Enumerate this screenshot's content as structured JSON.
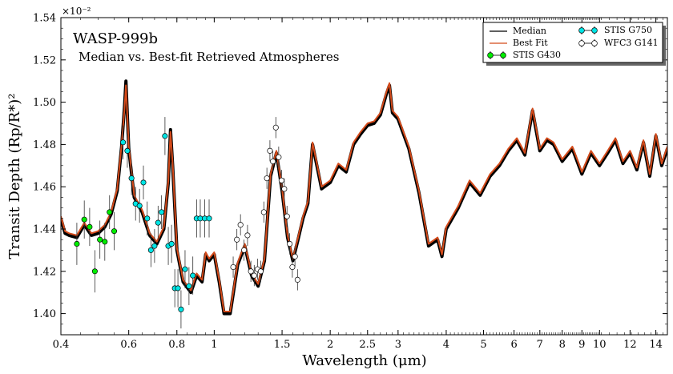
{
  "chart_data": {
    "type": "line",
    "title": "WASP-999b",
    "subtitle": "Median vs. Best-fit Retrieved Atmospheres",
    "xlabel": "Wavelength (μm)",
    "ylabel": "Transit Depth (Rp/R*)²",
    "y_multiplier": "×10⁻²",
    "x_scale": "log",
    "xlim": [
      0.4,
      15
    ],
    "ylim": [
      1.39,
      1.54
    ],
    "x_ticks": [
      0.4,
      0.6,
      0.8,
      1,
      1.5,
      2,
      2.5,
      3,
      4,
      5,
      6,
      7,
      8,
      9,
      10,
      12,
      14
    ],
    "x_tick_labels": [
      "0.4",
      "0.6",
      "0.8",
      "1",
      "1.5",
      "2",
      "2.5",
      "3",
      "4",
      "5",
      "6",
      "7",
      "8",
      "9",
      "10",
      "12",
      "14"
    ],
    "y_ticks": [
      1.4,
      1.42,
      1.44,
      1.46,
      1.48,
      1.5,
      1.52,
      1.54
    ],
    "y_tick_labels": [
      "1.40",
      "1.42",
      "1.44",
      "1.46",
      "1.48",
      "1.50",
      "1.52",
      "1.54"
    ],
    "legend_position": "top-right",
    "colors": {
      "median": "#000000",
      "best_fit": "#d44a1a",
      "stis_g430": "#00ee00",
      "stis_g750": "#00e5e5",
      "wfc3_g141": "#ffffff"
    },
    "lines": [
      {
        "name": "Median",
        "x": [
          0.4,
          0.41,
          0.42,
          0.44,
          0.46,
          0.48,
          0.5,
          0.52,
          0.54,
          0.56,
          0.575,
          0.585,
          0.59,
          0.6,
          0.62,
          0.65,
          0.68,
          0.71,
          0.74,
          0.76,
          0.77,
          0.78,
          0.8,
          0.83,
          0.87,
          0.9,
          0.93,
          0.95,
          0.97,
          1.0,
          1.03,
          1.06,
          1.1,
          1.15,
          1.2,
          1.25,
          1.3,
          1.35,
          1.4,
          1.45,
          1.5,
          1.55,
          1.6,
          1.65,
          1.7,
          1.75,
          1.8,
          1.9,
          2.0,
          2.1,
          2.2,
          2.3,
          2.4,
          2.5,
          2.6,
          2.7,
          2.8,
          2.85,
          2.9,
          3.0,
          3.2,
          3.4,
          3.6,
          3.8,
          3.9,
          4.0,
          4.3,
          4.6,
          4.9,
          5.2,
          5.5,
          5.8,
          6.1,
          6.4,
          6.7,
          7.0,
          7.3,
          7.6,
          8.0,
          8.5,
          9.0,
          9.5,
          10.0,
          10.5,
          11.0,
          11.5,
          12.0,
          12.5,
          13.0,
          13.5,
          14.0,
          14.5,
          15.0
        ],
        "y": [
          1.445,
          1.438,
          1.437,
          1.436,
          1.442,
          1.437,
          1.438,
          1.441,
          1.447,
          1.458,
          1.479,
          1.498,
          1.51,
          1.478,
          1.455,
          1.448,
          1.437,
          1.433,
          1.44,
          1.462,
          1.487,
          1.47,
          1.43,
          1.415,
          1.41,
          1.418,
          1.415,
          1.428,
          1.425,
          1.428,
          1.415,
          1.4,
          1.4,
          1.423,
          1.432,
          1.418,
          1.413,
          1.425,
          1.465,
          1.476,
          1.458,
          1.436,
          1.425,
          1.435,
          1.445,
          1.452,
          1.48,
          1.459,
          1.462,
          1.47,
          1.467,
          1.48,
          1.485,
          1.489,
          1.49,
          1.494,
          1.504,
          1.508,
          1.495,
          1.492,
          1.478,
          1.457,
          1.432,
          1.435,
          1.427,
          1.44,
          1.45,
          1.462,
          1.456,
          1.465,
          1.47,
          1.477,
          1.482,
          1.475,
          1.496,
          1.477,
          1.482,
          1.48,
          1.472,
          1.478,
          1.466,
          1.476,
          1.47,
          1.476,
          1.482,
          1.471,
          1.476,
          1.468,
          1.481,
          1.465,
          1.484,
          1.47,
          1.478
        ]
      },
      {
        "name": "Best Fit",
        "x": [
          0.4,
          0.41,
          0.42,
          0.44,
          0.46,
          0.48,
          0.5,
          0.52,
          0.54,
          0.56,
          0.575,
          0.585,
          0.59,
          0.6,
          0.62,
          0.65,
          0.68,
          0.71,
          0.74,
          0.76,
          0.77,
          0.78,
          0.8,
          0.83,
          0.87,
          0.9,
          0.93,
          0.95,
          0.97,
          1.0,
          1.03,
          1.06,
          1.1,
          1.15,
          1.2,
          1.25,
          1.3,
          1.35,
          1.4,
          1.45,
          1.5,
          1.55,
          1.6,
          1.65,
          1.7,
          1.75,
          1.8,
          1.9,
          2.0,
          2.1,
          2.2,
          2.3,
          2.4,
          2.5,
          2.6,
          2.7,
          2.8,
          2.85,
          2.9,
          3.0,
          3.2,
          3.4,
          3.6,
          3.8,
          3.9,
          4.0,
          4.3,
          4.6,
          4.9,
          5.2,
          5.5,
          5.8,
          6.1,
          6.4,
          6.7,
          7.0,
          7.3,
          7.6,
          8.0,
          8.5,
          9.0,
          9.5,
          10.0,
          10.5,
          11.0,
          11.5,
          12.0,
          12.5,
          13.0,
          13.5,
          14.0,
          14.5,
          15.0
        ],
        "y": [
          1.446,
          1.439,
          1.438,
          1.437,
          1.443,
          1.438,
          1.439,
          1.442,
          1.448,
          1.459,
          1.48,
          1.497,
          1.508,
          1.479,
          1.456,
          1.449,
          1.438,
          1.434,
          1.441,
          1.463,
          1.486,
          1.471,
          1.431,
          1.416,
          1.411,
          1.419,
          1.416,
          1.429,
          1.426,
          1.429,
          1.416,
          1.401,
          1.401,
          1.424,
          1.433,
          1.419,
          1.414,
          1.426,
          1.466,
          1.477,
          1.459,
          1.437,
          1.426,
          1.436,
          1.446,
          1.453,
          1.481,
          1.46,
          1.463,
          1.471,
          1.468,
          1.481,
          1.486,
          1.49,
          1.491,
          1.495,
          1.505,
          1.509,
          1.496,
          1.493,
          1.479,
          1.458,
          1.433,
          1.436,
          1.428,
          1.441,
          1.451,
          1.463,
          1.457,
          1.466,
          1.471,
          1.478,
          1.483,
          1.476,
          1.497,
          1.478,
          1.483,
          1.481,
          1.473,
          1.479,
          1.467,
          1.477,
          1.471,
          1.477,
          1.483,
          1.472,
          1.477,
          1.469,
          1.482,
          1.466,
          1.485,
          1.471,
          1.479
        ]
      }
    ],
    "series": [
      {
        "name": "STIS G430",
        "x": [
          0.44,
          0.46,
          0.475,
          0.49,
          0.505,
          0.52,
          0.535,
          0.55
        ],
        "y": [
          1.433,
          1.4445,
          1.441,
          1.42,
          1.435,
          1.434,
          1.448,
          1.439
        ],
        "err": [
          0.01,
          0.009,
          0.009,
          0.01,
          0.009,
          0.009,
          0.008,
          0.009
        ]
      },
      {
        "name": "STIS G750",
        "x": [
          0.58,
          0.595,
          0.61,
          0.625,
          0.64,
          0.655,
          0.67,
          0.685,
          0.7,
          0.715,
          0.73,
          0.745,
          0.76,
          0.775,
          0.79,
          0.805,
          0.82,
          0.84,
          0.86,
          0.88,
          0.9,
          0.92,
          0.945,
          0.97
        ],
        "y": [
          1.481,
          1.477,
          1.464,
          1.452,
          1.451,
          1.462,
          1.445,
          1.43,
          1.432,
          1.443,
          1.448,
          1.484,
          1.432,
          1.433,
          1.412,
          1.412,
          1.402,
          1.421,
          1.413,
          1.418,
          1.445,
          1.445,
          1.445,
          1.445
        ],
        "err": [
          0.008,
          0.008,
          0.008,
          0.008,
          0.008,
          0.008,
          0.008,
          0.008,
          0.008,
          0.008,
          0.008,
          0.009,
          0.009,
          0.009,
          0.009,
          0.009,
          0.009,
          0.009,
          0.009,
          0.009,
          0.009,
          0.009,
          0.009,
          0.009
        ]
      },
      {
        "name": "WFC3 G141",
        "x": [
          1.12,
          1.145,
          1.17,
          1.195,
          1.22,
          1.245,
          1.27,
          1.295,
          1.32,
          1.345,
          1.37,
          1.395,
          1.42,
          1.445,
          1.47,
          1.495,
          1.52,
          1.545,
          1.57,
          1.595,
          1.62,
          1.645
        ],
        "y": [
          1.422,
          1.435,
          1.442,
          1.43,
          1.437,
          1.42,
          1.418,
          1.421,
          1.42,
          1.448,
          1.464,
          1.477,
          1.472,
          1.488,
          1.474,
          1.463,
          1.459,
          1.446,
          1.433,
          1.422,
          1.427,
          1.416
        ],
        "err": [
          0.005,
          0.005,
          0.005,
          0.005,
          0.005,
          0.005,
          0.005,
          0.005,
          0.005,
          0.005,
          0.005,
          0.005,
          0.005,
          0.005,
          0.005,
          0.005,
          0.005,
          0.005,
          0.005,
          0.005,
          0.005,
          0.005
        ]
      }
    ]
  }
}
